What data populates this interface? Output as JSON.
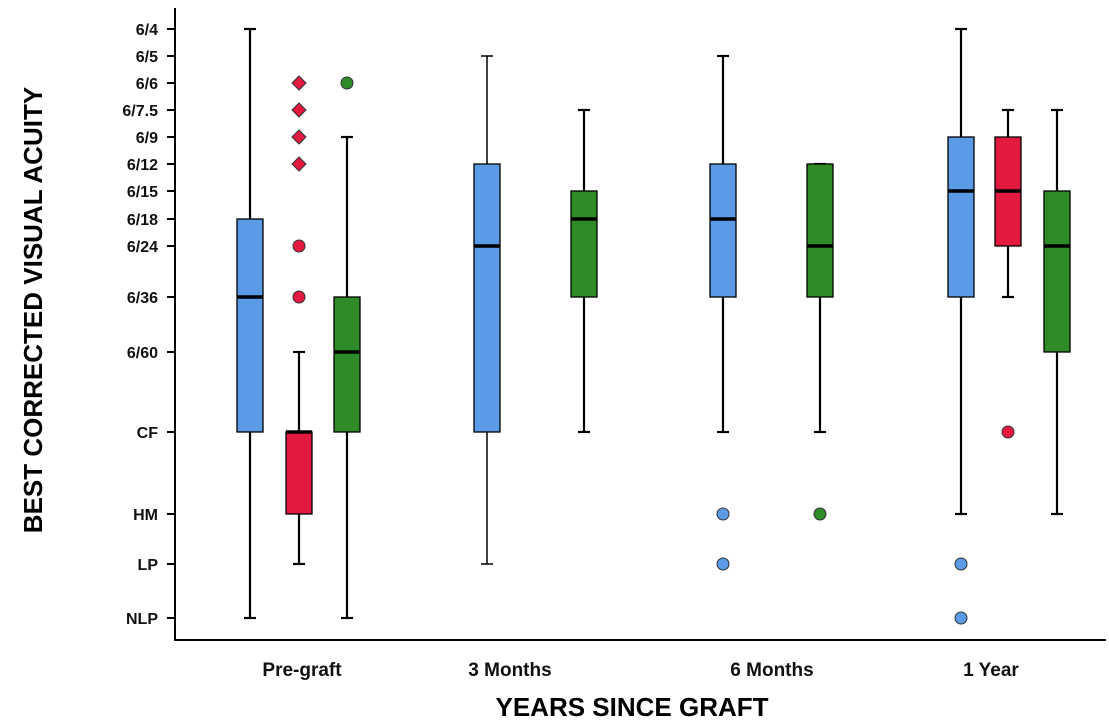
{
  "chart_data": {
    "type": "box",
    "title": "",
    "xlabel": "YEARS SINCE GRAFT",
    "ylabel": "BEST CORRECTED VISUAL ACUITY",
    "y_ticks": [
      "NLP",
      "LP",
      "HM",
      "CF",
      "6/60",
      "6/36",
      "6/24",
      "6/18",
      "6/15",
      "6/12",
      "6/9",
      "6/7.5",
      "6/6",
      "6/5",
      "6/4"
    ],
    "ylim": [
      "NLP",
      "6/4"
    ],
    "grid": false,
    "legend": "none",
    "categories": [
      "Pre-graft",
      "3 Months",
      "6 Months",
      "1 Year"
    ],
    "series_colors": {
      "blue": "#5b9be6",
      "red": "#e31a3f",
      "green": "#2e8b28"
    },
    "boxes": [
      {
        "category": "Pre-graft",
        "color": "blue",
        "whisker_low": "NLP",
        "q1": "CF",
        "median": "6/36",
        "q3": "6/18",
        "whisker_high": "6/4",
        "outliers": []
      },
      {
        "category": "Pre-graft",
        "color": "red",
        "whisker_low": "LP",
        "q1": "HM",
        "median": "CF",
        "q3": "CF",
        "whisker_high": "6/60",
        "outliers": [
          {
            "value": "6/6",
            "marker": "diamond"
          },
          {
            "value": "6/7.5",
            "marker": "diamond"
          },
          {
            "value": "6/9",
            "marker": "diamond"
          },
          {
            "value": "6/12",
            "marker": "diamond"
          },
          {
            "value": "6/24",
            "marker": "circle"
          },
          {
            "value": "6/36",
            "marker": "circle"
          }
        ]
      },
      {
        "category": "Pre-graft",
        "color": "green",
        "whisker_low": "NLP",
        "q1": "CF",
        "median": "6/60",
        "q3": "6/36",
        "whisker_high": "6/9",
        "outliers": [
          {
            "value": "6/6",
            "marker": "circle"
          }
        ]
      },
      {
        "category": "3 Months",
        "color": "blue",
        "whisker_low": "LP",
        "q1": "CF",
        "median": "6/24",
        "q3": "6/12",
        "whisker_high": "6/5",
        "outliers": []
      },
      {
        "category": "3 Months",
        "color": "green",
        "whisker_low": "CF",
        "q1": "6/36",
        "median": "6/18",
        "q3": "6/15",
        "whisker_high": "6/7.5",
        "outliers": []
      },
      {
        "category": "6 Months",
        "color": "blue",
        "whisker_low": "CF",
        "q1": "6/36",
        "median": "6/18",
        "q3": "6/12",
        "whisker_high": "6/5",
        "outliers": [
          {
            "value": "HM",
            "marker": "circle"
          },
          {
            "value": "LP",
            "marker": "circle"
          }
        ]
      },
      {
        "category": "6 Months",
        "color": "green",
        "whisker_low": "CF",
        "q1": "6/36",
        "median": "6/24",
        "q3": "6/12",
        "whisker_high": "6/12",
        "outliers": [
          {
            "value": "HM",
            "marker": "circle"
          }
        ]
      },
      {
        "category": "1 Year",
        "color": "blue",
        "whisker_low": "HM",
        "q1": "6/36",
        "median": "6/15",
        "q3": "6/9",
        "whisker_high": "6/4",
        "outliers": [
          {
            "value": "LP",
            "marker": "circle"
          },
          {
            "value": "NLP",
            "marker": "circle"
          }
        ]
      },
      {
        "category": "1 Year",
        "color": "red",
        "whisker_low": "6/36",
        "q1": "6/24",
        "median": "6/15",
        "q3": "6/9",
        "whisker_high": "6/7.5",
        "outliers": [
          {
            "value": "CF",
            "marker": "circle"
          }
        ]
      },
      {
        "category": "1 Year",
        "color": "green",
        "whisker_low": "HM",
        "q1": "6/60",
        "median": "6/24",
        "q3": "6/15",
        "whisker_high": "6/7.5",
        "outliers": []
      }
    ]
  }
}
